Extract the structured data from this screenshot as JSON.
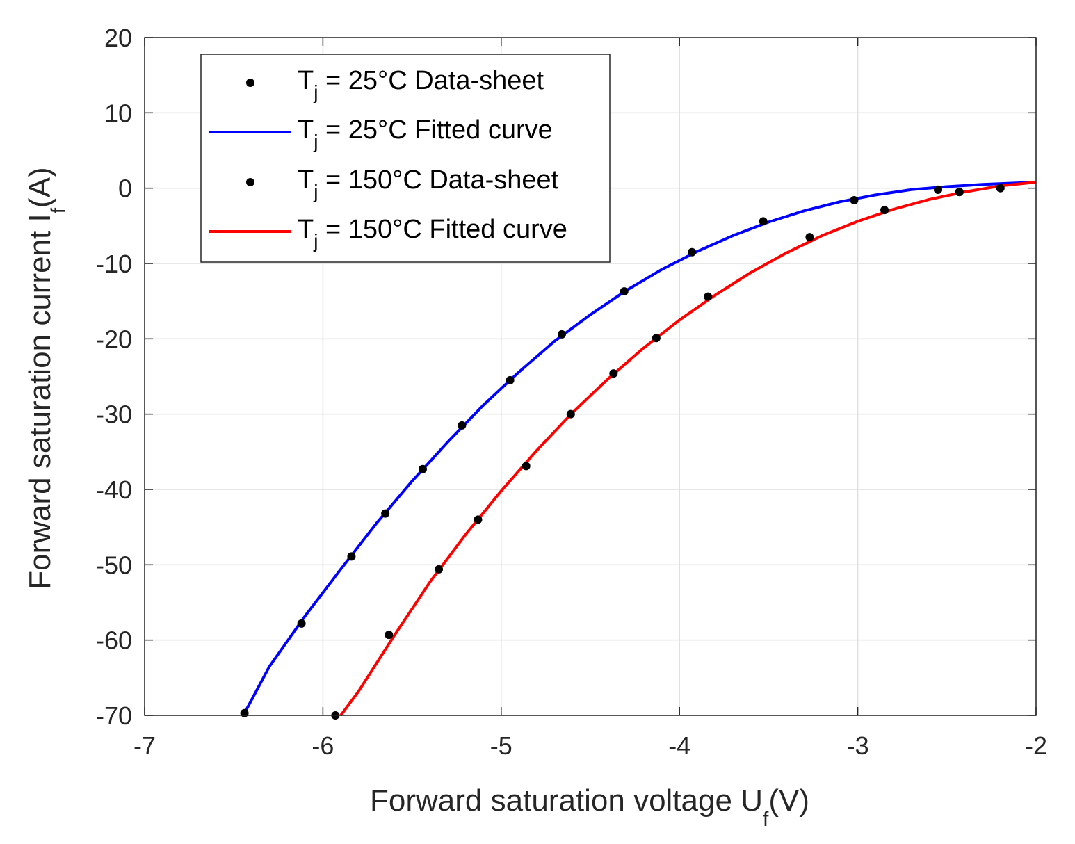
{
  "chart_data": {
    "type": "scatter",
    "xlabel": {
      "main": "Forward saturation voltage U",
      "sub": "f",
      "unit": "(V)"
    },
    "ylabel": {
      "main": "Forward saturation current I",
      "sub": "f",
      "unit": "(A)"
    },
    "xlim": [
      -7,
      -2
    ],
    "ylim": [
      -70,
      20
    ],
    "xticks": [
      -7,
      -6,
      -5,
      -4,
      -3,
      -2
    ],
    "yticks": [
      20,
      10,
      0,
      -10,
      -20,
      -30,
      -40,
      -50,
      -60,
      -70
    ],
    "xtick_labels": [
      "-7",
      "-6",
      "-5",
      "-4",
      "-3",
      "-2"
    ],
    "ytick_labels": [
      "20",
      "10",
      "0",
      "-10",
      "-20",
      "-30",
      "-40",
      "-50",
      "-60",
      "-70"
    ],
    "grid": true,
    "legend_position": "top-left",
    "series": [
      {
        "name": "T_j = 25°C Data-sheet",
        "legend": {
          "pre": "T",
          "sub": "j",
          "post": " = 25°C Data-sheet"
        },
        "kind": "points",
        "color": "#000000",
        "x": [
          -6.44,
          -6.12,
          -5.84,
          -5.65,
          -5.44,
          -5.22,
          -4.95,
          -4.66,
          -4.31,
          -3.93,
          -3.53,
          -3.02,
          -2.55,
          -2.43,
          -2.2
        ],
        "y": [
          -69.7,
          -57.8,
          -48.9,
          -43.2,
          -37.3,
          -31.5,
          -25.5,
          -19.4,
          -13.7,
          -8.5,
          -4.4,
          -1.6,
          -0.2,
          -0.5,
          0.0
        ]
      },
      {
        "name": "T_j = 25°C Fitted curve",
        "legend": {
          "pre": "T",
          "sub": "j",
          "post": " = 25°C Fitted curve"
        },
        "kind": "line",
        "color": "#0000ff",
        "x": [
          -6.44,
          -6.3,
          -6.1,
          -5.9,
          -5.7,
          -5.5,
          -5.3,
          -5.1,
          -4.9,
          -4.7,
          -4.5,
          -4.3,
          -4.1,
          -3.9,
          -3.7,
          -3.5,
          -3.3,
          -3.1,
          -2.9,
          -2.7,
          -2.5,
          -2.3,
          -2.1,
          -2.0
        ],
        "y": [
          -69.7,
          -63.5,
          -56.8,
          -50.6,
          -44.5,
          -38.9,
          -33.7,
          -28.8,
          -24.4,
          -20.3,
          -16.8,
          -13.6,
          -10.8,
          -8.4,
          -6.3,
          -4.5,
          -3.0,
          -1.8,
          -0.9,
          -0.2,
          0.2,
          0.5,
          0.7,
          0.8
        ]
      },
      {
        "name": "T_j = 150°C Data-sheet",
        "legend": {
          "pre": "T",
          "sub": "j",
          "post": " = 150°C Data-sheet"
        },
        "kind": "points",
        "color": "#000000",
        "x": [
          -5.93,
          -5.63,
          -5.35,
          -5.13,
          -4.86,
          -4.61,
          -4.37,
          -4.13,
          -3.84,
          -3.27,
          -2.85,
          -2.55,
          -2.43,
          -2.2
        ],
        "y": [
          -70.0,
          -59.3,
          -50.6,
          -44.0,
          -36.9,
          -30.0,
          -24.6,
          -19.9,
          -14.4,
          -6.5,
          -2.9,
          -0.2,
          -0.5,
          0.0
        ]
      },
      {
        "name": "T_j = 150°C Fitted curve",
        "legend": {
          "pre": "T",
          "sub": "j",
          "post": " = 150°C Fitted curve"
        },
        "kind": "line",
        "color": "#ff0000",
        "x": [
          -5.9,
          -5.8,
          -5.6,
          -5.4,
          -5.2,
          -5.0,
          -4.8,
          -4.6,
          -4.4,
          -4.2,
          -4.0,
          -3.8,
          -3.6,
          -3.4,
          -3.2,
          -3.0,
          -2.8,
          -2.6,
          -2.4,
          -2.2,
          -2.0
        ],
        "y": [
          -70.0,
          -66.8,
          -59.4,
          -52.3,
          -46.0,
          -40.2,
          -34.8,
          -29.8,
          -25.3,
          -21.2,
          -17.5,
          -14.2,
          -11.2,
          -8.6,
          -6.3,
          -4.4,
          -2.8,
          -1.5,
          -0.5,
          0.3,
          0.8
        ]
      }
    ]
  }
}
